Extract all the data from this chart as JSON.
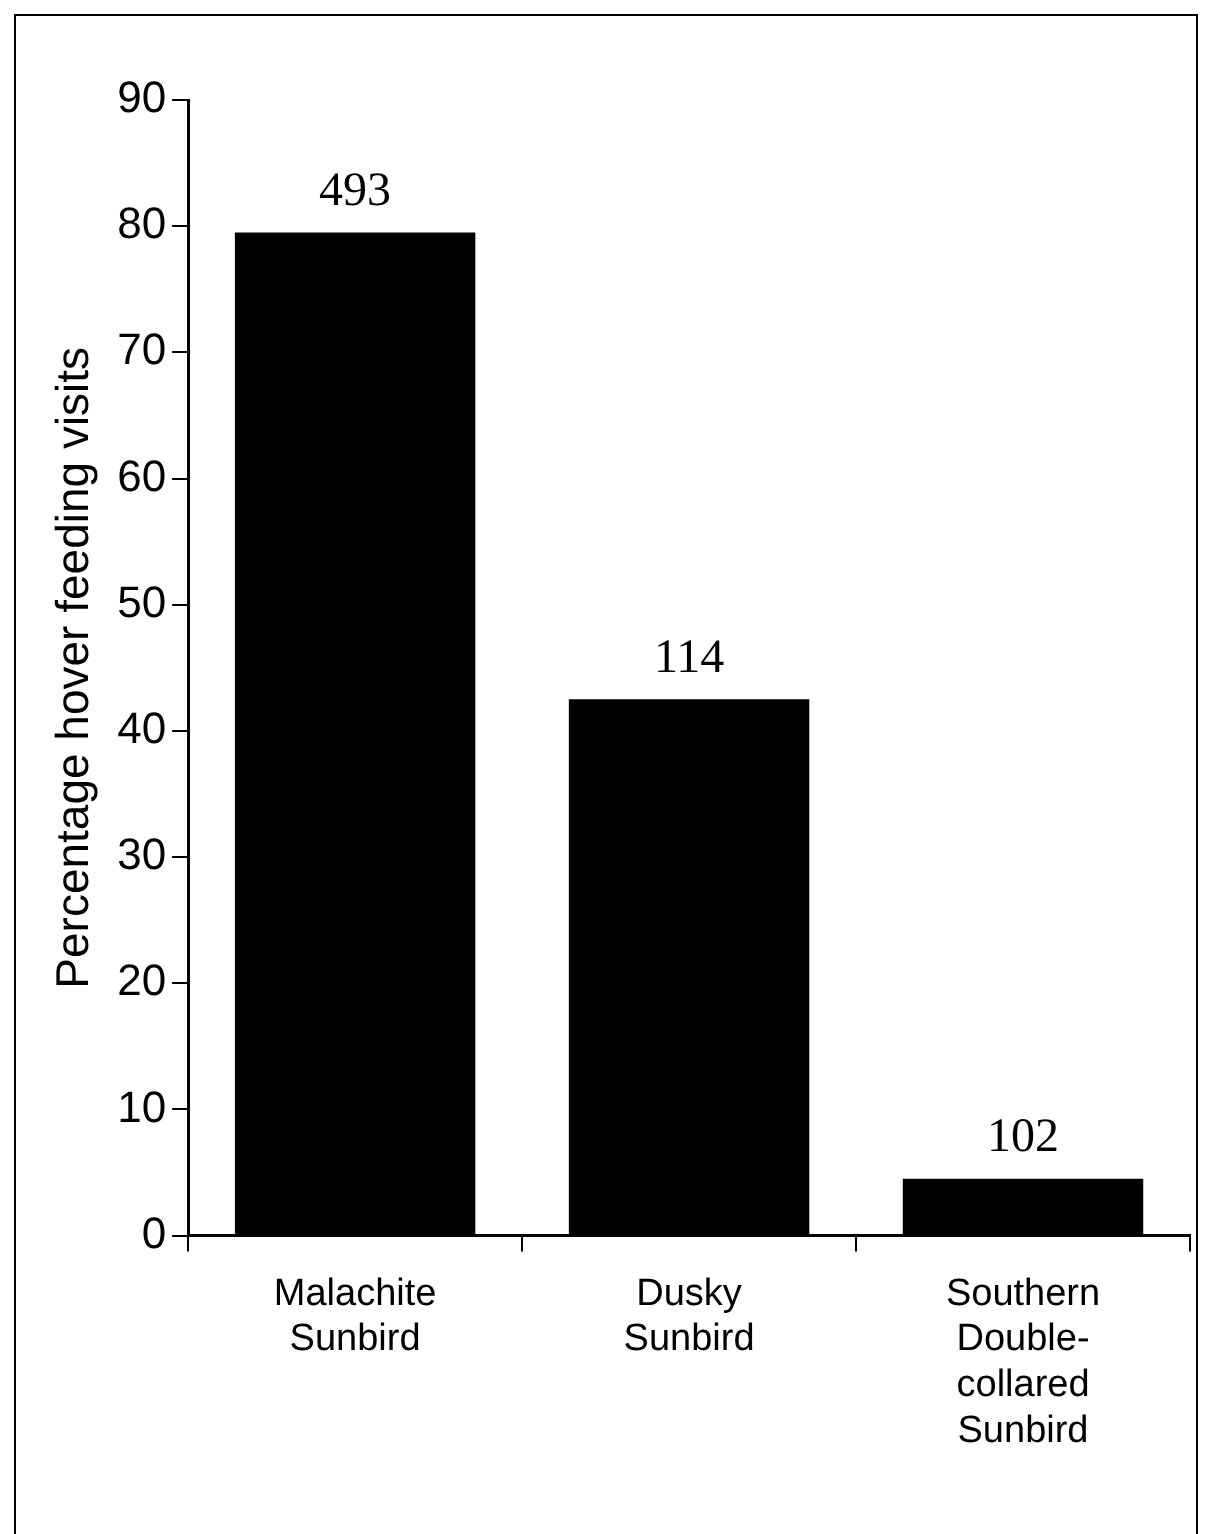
{
  "chart_data": {
    "type": "bar",
    "ylabel": "Percentage hover feeding visits",
    "categories": [
      "Malachite Sunbird",
      "Dusky Sunbird",
      "Southern Double-collared Sunbird"
    ],
    "values": [
      79.5,
      42.5,
      4.5
    ],
    "color": "#000000",
    "annotations": [
      {
        "text": "493",
        "x": "Malachite Sunbird",
        "y": 79.5
      },
      {
        "text": "114",
        "x": "Dusky Sunbird",
        "y": 42.5
      },
      {
        "text": "102",
        "x": "Southern Double-collared Sunbird",
        "y": 4.5
      }
    ],
    "ylim": [
      0,
      90
    ],
    "yticks": [
      0,
      10,
      20,
      30,
      40,
      50,
      60,
      70,
      80,
      90
    ],
    "grid": false,
    "legend": false
  }
}
